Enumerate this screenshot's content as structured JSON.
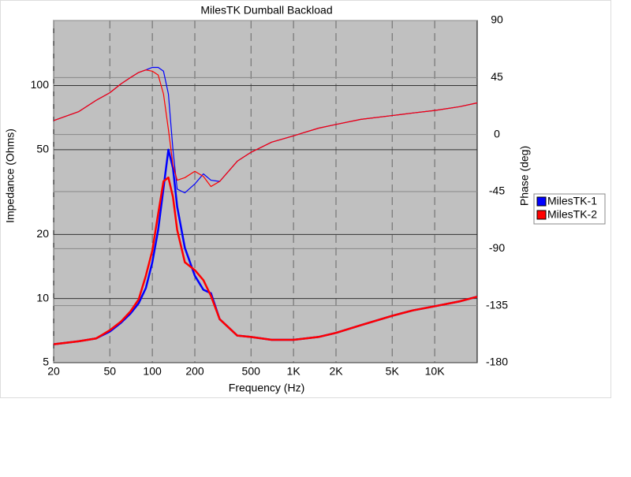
{
  "chart_data": {
    "type": "line",
    "title": "MilesTK Dumball Backload",
    "x_label": "Frequency (Hz)",
    "y_label": "Impedance (Ohms)",
    "y2_label": "Phase (deg)",
    "xscale": "log",
    "yscale": "log",
    "grid": true,
    "legend": "right",
    "x": [
      20,
      30,
      40,
      50,
      60,
      70,
      80,
      90,
      100,
      110,
      120,
      130,
      140,
      150,
      170,
      200,
      230,
      260,
      300,
      400,
      500,
      700,
      1000,
      1500,
      2000,
      3000,
      5000,
      7000,
      10000,
      15000,
      20000
    ],
    "xlim": [
      20,
      20000
    ],
    "xticks": [
      20,
      50,
      100,
      200,
      500,
      {
        "value": 1000,
        "label": "1K"
      },
      {
        "value": 2000,
        "label": "2K"
      },
      {
        "value": 5000,
        "label": "5K"
      },
      {
        "value": 10000,
        "label": "10K"
      }
    ],
    "ylim": [
      5,
      202
    ],
    "yticks": [
      5,
      10,
      20,
      50,
      100
    ],
    "y2lim": [
      -180,
      90
    ],
    "y2ticks": [
      -180,
      -135,
      -90,
      -45,
      0,
      45,
      90
    ],
    "series": [
      {
        "name": "MilesTK-1",
        "color": "#0000ff",
        "values": [
          6.1,
          6.3,
          6.5,
          7.0,
          7.7,
          8.5,
          9.5,
          11.2,
          14.8,
          21,
          33,
          50,
          41,
          27,
          17.3,
          12.8,
          11.0,
          10.6,
          8.0,
          6.7,
          6.6,
          6.4,
          6.4,
          6.6,
          6.9,
          7.5,
          8.3,
          8.8,
          9.2,
          9.7,
          10.2
        ]
      },
      {
        "name": "MilesTK-2",
        "color": "#ff0000",
        "values": [
          6.1,
          6.3,
          6.5,
          7.1,
          7.8,
          8.7,
          9.9,
          12.8,
          16.8,
          25,
          35.5,
          37,
          30,
          21,
          14.8,
          13.6,
          12.2,
          10.3,
          8.0,
          6.7,
          6.6,
          6.4,
          6.4,
          6.6,
          6.9,
          7.5,
          8.3,
          8.8,
          9.2,
          9.7,
          10.2
        ]
      },
      {
        "name": "MilesTK-1",
        "color": "#0000ff",
        "axis": "y2",
        "values": [
          11,
          18,
          27,
          33,
          40,
          45,
          49,
          51,
          53,
          53,
          50,
          32,
          -12,
          -43,
          -46,
          -39,
          -31,
          -36,
          -37,
          -21,
          -14,
          -6,
          -1,
          5,
          8,
          12,
          15,
          17,
          19,
          22,
          25
        ]
      },
      {
        "name": "MilesTK-2",
        "color": "#ff0000",
        "axis": "y2",
        "values": [
          11,
          18,
          27,
          33,
          40,
          45,
          49,
          51,
          50,
          47,
          32,
          4,
          -24,
          -36,
          -34,
          -29,
          -33,
          -41,
          -37,
          -21,
          -14,
          -6,
          -1,
          5,
          8,
          12,
          15,
          17,
          19,
          22,
          25
        ]
      }
    ]
  }
}
